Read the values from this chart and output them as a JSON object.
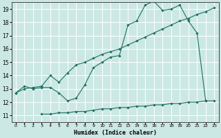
{
  "title": "",
  "xlabel": "Humidex (Indice chaleur)",
  "bg_color": "#cce8e4",
  "grid_color": "#ffffff",
  "line_color": "#1a6e62",
  "xlim": [
    -0.5,
    23.5
  ],
  "ylim": [
    10.5,
    19.5
  ],
  "xticks": [
    0,
    1,
    2,
    3,
    4,
    5,
    6,
    7,
    8,
    9,
    10,
    11,
    12,
    13,
    14,
    15,
    16,
    17,
    18,
    19,
    20,
    21,
    22,
    23
  ],
  "yticks": [
    11,
    12,
    13,
    14,
    15,
    16,
    17,
    18,
    19
  ],
  "line1_x": [
    0,
    1,
    2,
    3,
    4,
    5,
    6,
    7,
    8,
    9,
    10,
    11,
    12,
    13,
    14,
    15,
    16,
    17,
    18,
    19,
    20,
    21,
    22
  ],
  "line1_y": [
    12.7,
    13.2,
    13.0,
    13.1,
    13.1,
    12.7,
    12.1,
    12.3,
    13.3,
    14.6,
    15.0,
    15.4,
    15.5,
    17.8,
    18.1,
    19.3,
    19.6,
    18.9,
    19.0,
    19.3,
    18.1,
    17.2,
    12.1
  ],
  "line2_x": [
    0,
    1,
    2,
    3,
    4,
    5,
    6,
    7,
    8,
    9,
    10,
    11,
    12,
    13,
    14,
    15,
    16,
    17,
    18,
    19,
    20,
    21,
    22,
    23
  ],
  "line2_y": [
    12.7,
    13.0,
    13.1,
    13.2,
    14.0,
    13.5,
    14.2,
    14.8,
    15.0,
    15.3,
    15.6,
    15.8,
    16.0,
    16.3,
    16.6,
    16.9,
    17.2,
    17.5,
    17.8,
    18.1,
    18.3,
    18.6,
    18.8,
    19.1
  ],
  "line3_x": [
    3,
    4,
    5,
    6,
    7,
    8,
    9,
    10,
    11,
    12,
    13,
    14,
    15,
    16,
    17,
    18,
    19,
    20,
    21,
    22,
    23
  ],
  "line3_y": [
    11.1,
    11.1,
    11.2,
    11.2,
    11.3,
    11.3,
    11.4,
    11.5,
    11.5,
    11.6,
    11.6,
    11.7,
    11.7,
    11.8,
    11.8,
    11.9,
    11.9,
    12.0,
    12.0,
    12.1,
    12.1
  ]
}
